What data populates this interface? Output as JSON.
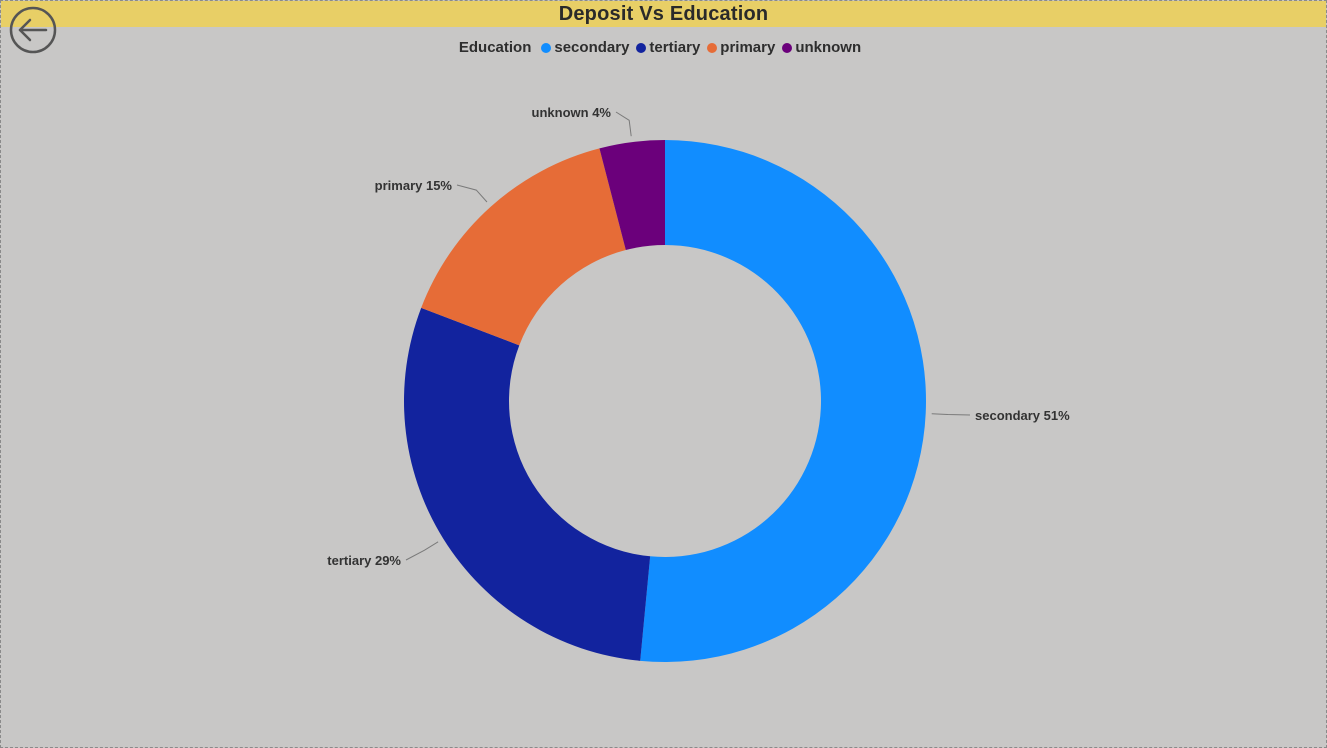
{
  "header": {
    "title": "Deposit Vs Education"
  },
  "legend": {
    "title": "Education"
  },
  "colors": {
    "title_bar": "#e8cf66",
    "background": "#c8c7c6",
    "secondary": "#118dff",
    "tertiary": "#12239e",
    "primary": "#e66c37",
    "unknown": "#6b007b"
  },
  "chart_data": {
    "type": "pie",
    "donut": true,
    "title": "Deposit Vs Education",
    "legend_title": "Education",
    "legend_position": "top-center",
    "categories": [
      "secondary",
      "tertiary",
      "primary",
      "unknown"
    ],
    "values": [
      51,
      29,
      15,
      4
    ],
    "value_suffix": "%",
    "labels": [
      "secondary 51%",
      "tertiary 29%",
      "primary 15%",
      "unknown 4%"
    ]
  }
}
